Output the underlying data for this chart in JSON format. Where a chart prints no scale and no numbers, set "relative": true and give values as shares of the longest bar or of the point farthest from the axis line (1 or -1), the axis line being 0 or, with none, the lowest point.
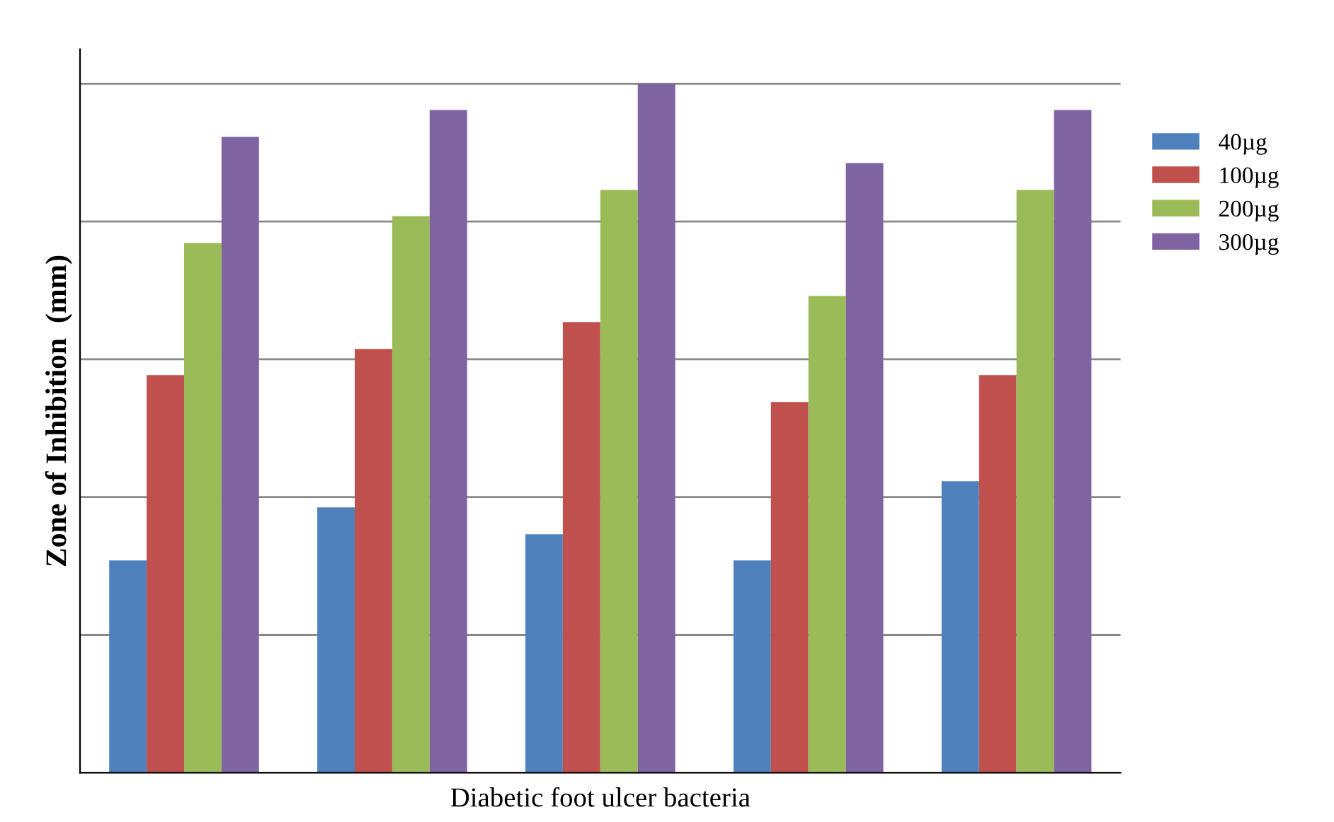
{
  "chart_data": {
    "type": "bar",
    "relative": true,
    "xlabel": "Diabetic foot ulcer bacteria",
    "ylabel": "Zone of Inhibition  (mm)",
    "categories": [
      null,
      null,
      null,
      null,
      null
    ],
    "grid": "y",
    "legend": "right",
    "series": [
      {
        "name": "40µg",
        "color": "#4f81bd",
        "values": [
          0.308,
          0.385,
          0.346,
          0.308,
          0.423
        ]
      },
      {
        "name": "100µg",
        "color": "#c0504d",
        "values": [
          0.577,
          0.615,
          0.654,
          0.538,
          0.577
        ]
      },
      {
        "name": "200µg",
        "color": "#9bbb59",
        "values": [
          0.769,
          0.808,
          0.846,
          0.692,
          0.846
        ]
      },
      {
        "name": "300µg",
        "color": "#8064a2",
        "values": [
          0.923,
          0.962,
          1,
          0.885,
          0.962
        ]
      }
    ]
  }
}
